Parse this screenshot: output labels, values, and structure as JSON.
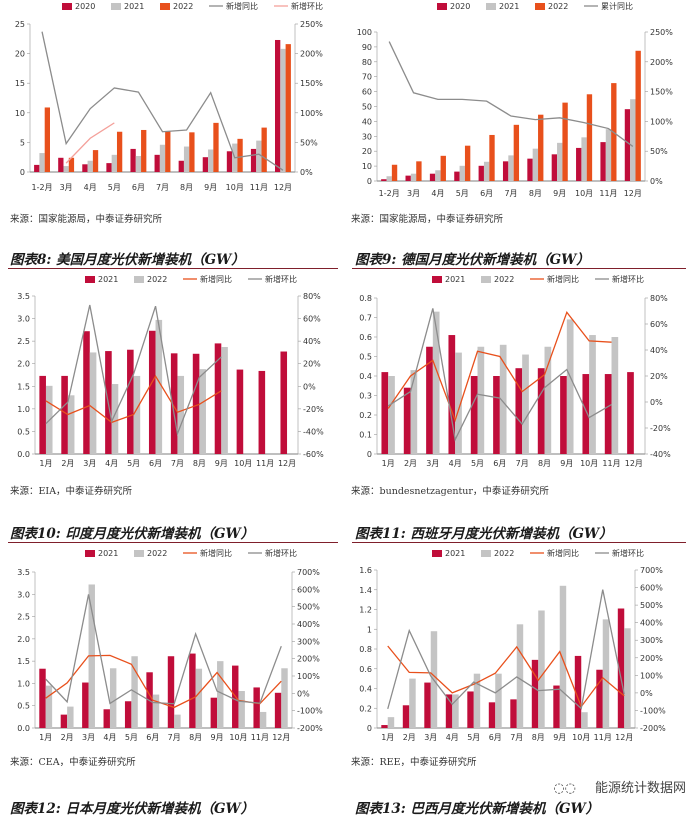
{
  "colors": {
    "2020": "#c00d3a",
    "2021": "#c4c4c4",
    "2022": "#e8501c",
    "line_yoy": "#8c8c8c",
    "line_mom": "#f4a09a",
    "red": "#c00d3a",
    "rule": "#7f1f2b"
  },
  "sources": {
    "s1": "来源：国家能源局，中泰证券研究所",
    "s2": "来源：国家能源局，中泰证券研究所",
    "s3": "来源：EIA，中泰证券研究所",
    "s4": "来源：bundesnetzagentur，中泰证券研究所",
    "s5": "来源：CEA，中泰证券研究所",
    "s6": "来源：REE，中泰证券研究所"
  },
  "titles": {
    "t8": "图表8: 美国月度光伏新增装机（GW）",
    "t9": "图表9: 德国月度光伏新增装机（GW）",
    "t10": "图表10: 印度月度光伏新增装机（GW）",
    "t11": "图表11: 西班牙月度光伏新增装机（GW）",
    "t12": "图表12: 日本月度光伏新增装机（GW）",
    "t13": "图表13: 巴西月度光伏新增装机（GW）"
  },
  "watermark": "能源统计数据网",
  "chart_data": [
    {
      "id": "c1",
      "type": "bar",
      "categories": [
        "1-2月",
        "3月",
        "4月",
        "5月",
        "6月",
        "7月",
        "8月",
        "9月",
        "10月",
        "11月",
        "12月"
      ],
      "legend": [
        "2020",
        "2021",
        "2022",
        "新增同比",
        "新增环比"
      ],
      "series": [
        {
          "name": "2020",
          "kind": "bar",
          "values": [
            1.2,
            2.4,
            1.3,
            1.5,
            3.9,
            2.9,
            1.9,
            2.5,
            3.5,
            3.9,
            22.3
          ]
        },
        {
          "name": "2021",
          "kind": "bar",
          "values": [
            3.2,
            1.0,
            1.9,
            2.9,
            2.7,
            4.6,
            4.3,
            3.8,
            4.8,
            5.3,
            20.8
          ]
        },
        {
          "name": "2022",
          "kind": "bar",
          "values": [
            10.9,
            2.4,
            3.7,
            6.8,
            7.1,
            6.9,
            6.7,
            8.3,
            5.6,
            7.5,
            21.6
          ]
        },
        {
          "name": "新增同比",
          "kind": "line",
          "axis": "right",
          "values": [
            237,
            48,
            107,
            142,
            135,
            68,
            71,
            134,
            24,
            30,
            3
          ]
        },
        {
          "name": "新增环比",
          "kind": "line",
          "axis": "right",
          "values": [
            null,
            15,
            57,
            83,
            null,
            null,
            null,
            null,
            null,
            null,
            null
          ]
        }
      ],
      "ylim": [
        0,
        25
      ],
      "yticks": [
        0,
        5,
        10,
        15,
        20,
        25
      ],
      "y2lim": [
        0,
        250
      ],
      "y2ticks": [
        "0%",
        "50%",
        "100%",
        "150%",
        "200%",
        "250%"
      ]
    },
    {
      "id": "c2",
      "type": "bar",
      "categories": [
        "1-2月",
        "3月",
        "4月",
        "5月",
        "6月",
        "7月",
        "8月",
        "9月",
        "10月",
        "11月",
        "12月"
      ],
      "legend": [
        "2020",
        "2021",
        "2022",
        "累计同比"
      ],
      "series": [
        {
          "name": "2020",
          "kind": "bar",
          "values": [
            1.2,
            3.6,
            4.9,
            6.3,
            10.2,
            13.2,
            15.0,
            17.9,
            22.2,
            26.1,
            48.2
          ]
        },
        {
          "name": "2021",
          "kind": "bar",
          "values": [
            3.2,
            4.9,
            7.2,
            10.2,
            12.9,
            17.2,
            21.7,
            25.6,
            29.3,
            34.8,
            54.9
          ]
        },
        {
          "name": "2022",
          "kind": "bar",
          "values": [
            10.9,
            13.2,
            16.9,
            23.7,
            30.9,
            37.7,
            44.5,
            52.6,
            58.2,
            65.7,
            87.4
          ]
        },
        {
          "name": "累计同比",
          "kind": "line",
          "axis": "right",
          "values": [
            234,
            148,
            137,
            137,
            134,
            109,
            103,
            106,
            98,
            88,
            58
          ]
        }
      ],
      "ylim": [
        0,
        100
      ],
      "yticks": [
        0,
        10,
        20,
        30,
        40,
        50,
        60,
        70,
        80,
        90,
        100
      ],
      "y2lim": [
        0,
        250
      ],
      "y2ticks": [
        "0%",
        "50%",
        "100%",
        "150%",
        "200%",
        "250%"
      ]
    },
    {
      "id": "c3",
      "type": "bar",
      "categories": [
        "1月",
        "2月",
        "3月",
        "4月",
        "5月",
        "6月",
        "7月",
        "8月",
        "9月",
        "10月",
        "11月",
        "12月"
      ],
      "legend": [
        "2021",
        "2022",
        "新增同比",
        "新增环比"
      ],
      "series": [
        {
          "name": "2021",
          "kind": "bar",
          "values": [
            1.73,
            1.73,
            2.72,
            2.28,
            2.31,
            2.73,
            2.23,
            2.22,
            2.45,
            1.87,
            1.84,
            2.27
          ]
        },
        {
          "name": "2022",
          "kind": "bar",
          "values": [
            1.51,
            1.3,
            2.25,
            1.55,
            1.73,
            2.97,
            1.73,
            1.88,
            2.37,
            null,
            null,
            null
          ]
        },
        {
          "name": "新增同比",
          "kind": "line",
          "axis": "right",
          "values": [
            -13,
            -25,
            -17,
            -32,
            -25,
            9,
            -23,
            -16,
            -4,
            null,
            null,
            null
          ]
        },
        {
          "name": "新增环比",
          "kind": "line",
          "axis": "right",
          "values": [
            -33,
            -14,
            72,
            -31,
            11,
            71,
            -42,
            8,
            26,
            null,
            null,
            null
          ]
        }
      ],
      "ylim": [
        0,
        3.5
      ],
      "yticks": [
        "0.0",
        "0.5",
        "1.0",
        "1.5",
        "2.0",
        "2.5",
        "3.0",
        "3.5"
      ],
      "y2lim": [
        -60,
        80
      ],
      "y2ticks": [
        "-60%",
        "-40%",
        "-20%",
        "0%",
        "20%",
        "40%",
        "60%",
        "80%"
      ]
    },
    {
      "id": "c4",
      "type": "bar",
      "categories": [
        "1月",
        "2月",
        "3月",
        "4月",
        "5月",
        "6月",
        "7月",
        "8月",
        "9月",
        "10月",
        "11月",
        "12月"
      ],
      "legend": [
        "2021",
        "2022",
        "新增同比",
        "新增环比"
      ],
      "series": [
        {
          "name": "2021",
          "kind": "bar",
          "values": [
            0.42,
            0.34,
            0.55,
            0.61,
            0.4,
            0.4,
            0.44,
            0.44,
            0.4,
            0.41,
            0.41,
            0.42
          ]
        },
        {
          "name": "2022",
          "kind": "bar",
          "values": [
            0.4,
            0.43,
            0.73,
            0.52,
            0.55,
            0.56,
            0.51,
            0.55,
            0.69,
            0.61,
            0.6,
            null
          ]
        },
        {
          "name": "新增同比",
          "kind": "line",
          "axis": "right",
          "values": [
            -5,
            20,
            32,
            -14,
            39,
            35,
            8,
            21,
            69,
            47,
            46,
            null
          ]
        },
        {
          "name": "新增环比",
          "kind": "line",
          "axis": "right",
          "values": [
            -3,
            8,
            72,
            -29,
            6,
            3,
            -17,
            11,
            25,
            -12,
            -2,
            null
          ]
        }
      ],
      "ylim": [
        0,
        0.8
      ],
      "yticks": [
        "0",
        "0.1",
        "0.2",
        "0.3",
        "0.4",
        "0.5",
        "0.6",
        "0.7",
        "0.8"
      ],
      "y2lim": [
        -40,
        80
      ],
      "y2ticks": [
        "-40%",
        "-20%",
        "0%",
        "20%",
        "40%",
        "60%",
        "80%"
      ]
    },
    {
      "id": "c5",
      "type": "bar",
      "categories": [
        "1月",
        "2月",
        "3月",
        "4月",
        "5月",
        "6月",
        "7月",
        "8月",
        "9月",
        "10月",
        "11月",
        "12月"
      ],
      "legend": [
        "2021",
        "2022",
        "新增同比",
        "新增环比"
      ],
      "series": [
        {
          "name": "2021",
          "kind": "bar",
          "values": [
            1.33,
            0.3,
            1.02,
            0.42,
            0.6,
            1.25,
            1.61,
            1.67,
            0.68,
            1.4,
            0.91,
            0.79
          ]
        },
        {
          "name": "2022",
          "kind": "bar",
          "values": [
            0.95,
            0.48,
            3.22,
            1.34,
            1.61,
            0.75,
            0.3,
            1.33,
            1.5,
            0.83,
            0.36,
            1.34
          ]
        },
        {
          "name": "新增同比",
          "kind": "line",
          "axis": "right",
          "values": [
            -28,
            60,
            216,
            219,
            168,
            -40,
            -81,
            -20,
            120,
            -41,
            -60,
            70
          ]
        },
        {
          "name": "新增环比",
          "kind": "line",
          "axis": "right",
          "values": [
            82,
            -49,
            571,
            -58,
            20,
            -53,
            -60,
            343,
            13,
            -45,
            -57,
            272
          ]
        }
      ],
      "ylim": [
        0,
        3.5
      ],
      "yticks": [
        "0.0",
        "0.5",
        "1.0",
        "1.5",
        "2.0",
        "2.5",
        "3.0",
        "3.5"
      ],
      "y2lim": [
        -200,
        700
      ],
      "y2ticks": [
        "-200%",
        "-100%",
        "0%",
        "100%",
        "200%",
        "300%",
        "400%",
        "500%",
        "600%",
        "700%"
      ]
    },
    {
      "id": "c6",
      "type": "bar",
      "categories": [
        "1月",
        "2月",
        "3月",
        "4月",
        "5月",
        "6月",
        "7月",
        "8月",
        "9月",
        "10月",
        "11月",
        "12月"
      ],
      "legend": [
        "2021",
        "2022",
        "新增同比",
        "新增环比"
      ],
      "series": [
        {
          "name": "2021",
          "kind": "bar",
          "values": [
            0.03,
            0.23,
            0.46,
            0.34,
            0.37,
            0.26,
            0.29,
            0.69,
            0.43,
            0.73,
            0.59,
            1.21
          ]
        },
        {
          "name": "2022",
          "kind": "bar",
          "values": [
            0.11,
            0.5,
            0.98,
            0.34,
            0.55,
            0.55,
            1.05,
            1.19,
            1.44,
            0.16,
            1.1,
            1.01
          ]
        },
        {
          "name": "新增同比",
          "kind": "line",
          "axis": "right",
          "values": [
            267,
            117,
            114,
            0,
            49,
            112,
            262,
            72,
            235,
            -78,
            86,
            -17
          ]
        },
        {
          "name": "新增环比",
          "kind": "line",
          "axis": "right",
          "values": [
            -91,
            355,
            96,
            -65,
            62,
            0,
            91,
            13,
            21,
            -89,
            588,
            -8
          ]
        }
      ],
      "ylim": [
        0,
        1.6
      ],
      "yticks": [
        "0",
        "0.2",
        "0.4",
        "0.6",
        "0.8",
        "1",
        "1.2",
        "1.4",
        "1.6"
      ],
      "y2lim": [
        -200,
        700
      ],
      "y2ticks": [
        "-200%",
        "-100%",
        "0%",
        "100%",
        "200%",
        "300%",
        "400%",
        "500%",
        "600%",
        "700%"
      ]
    }
  ]
}
